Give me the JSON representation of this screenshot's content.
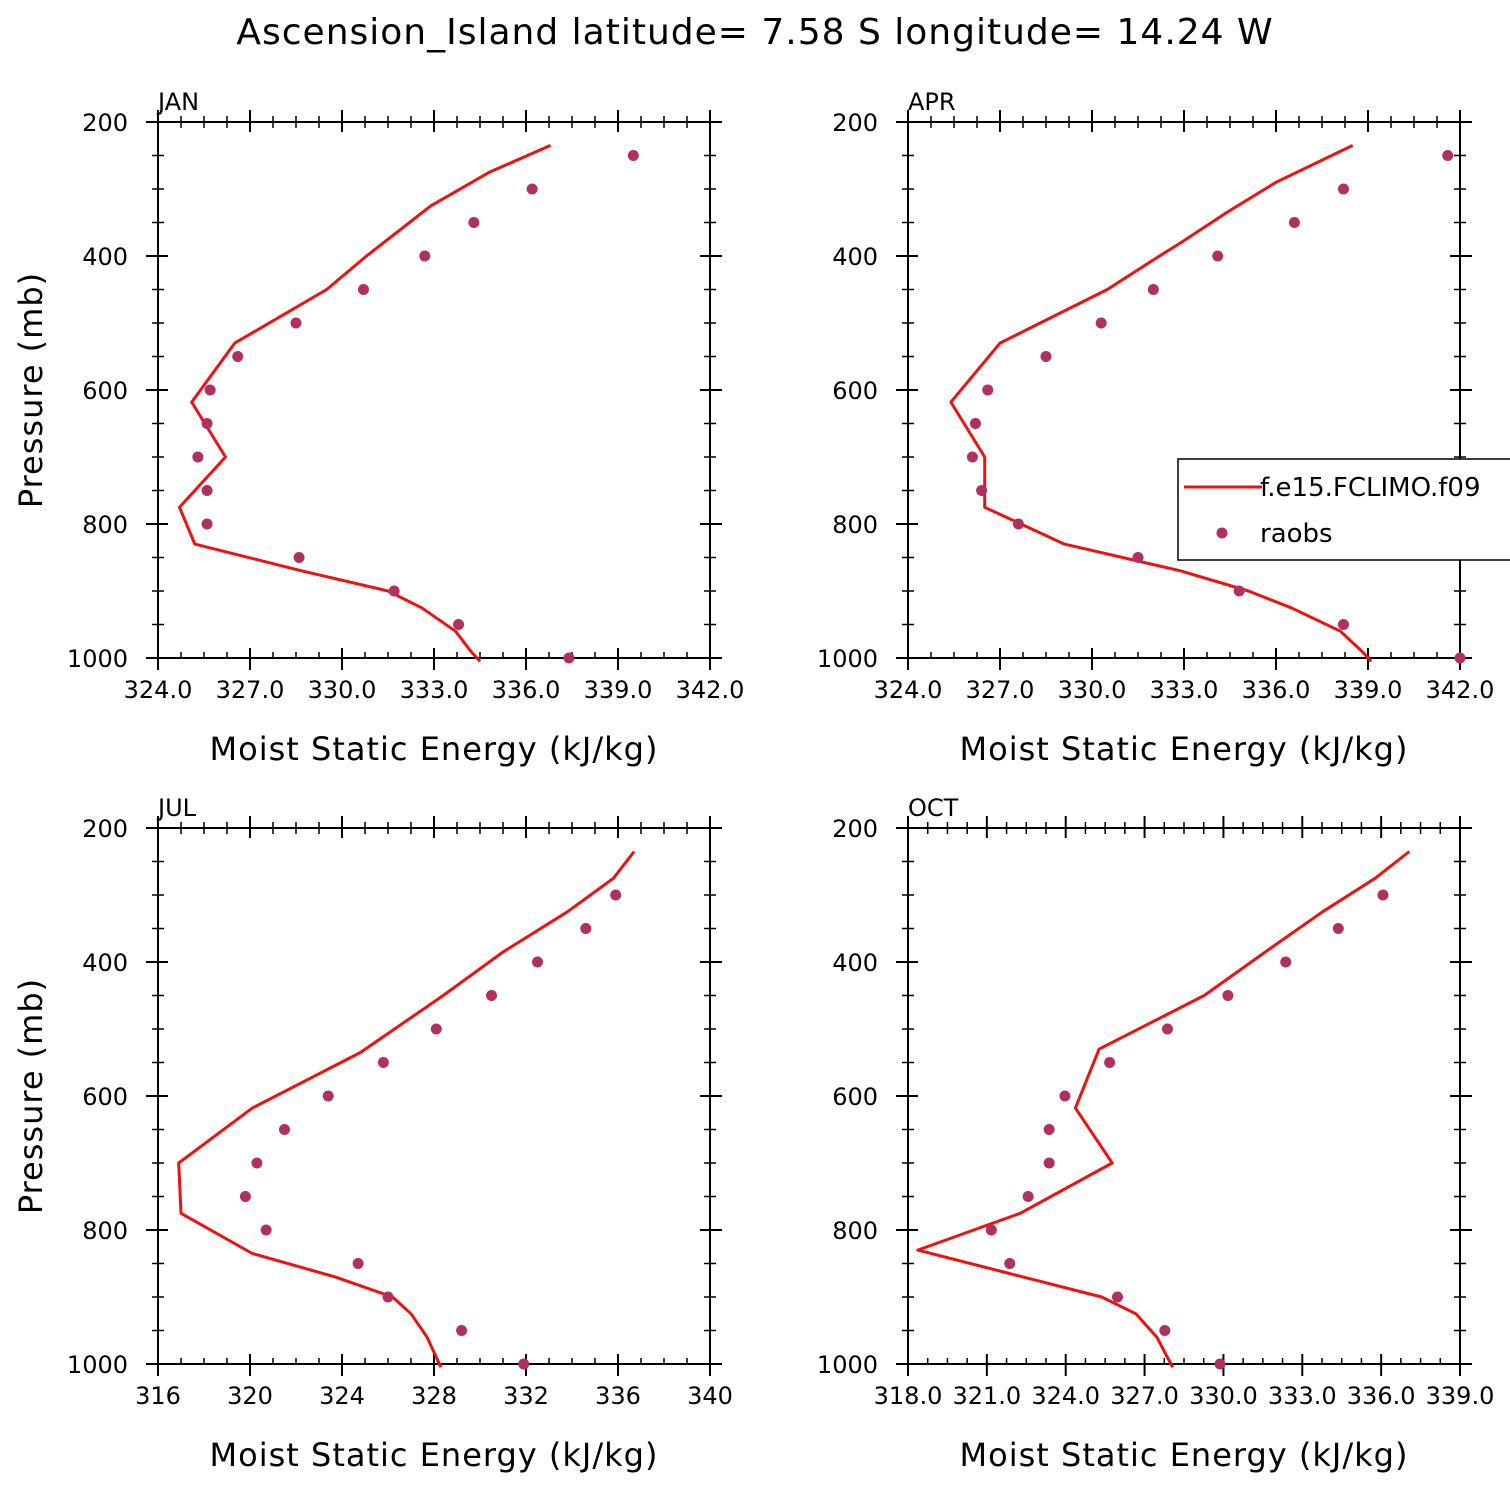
{
  "title": "Ascension_Island  latitude= 7.58 S longitude= 14.24 W",
  "colors": {
    "model": "#ee1111",
    "obs": "#b03060"
  },
  "legend": {
    "model_label": "f.e15.FCLIMO.f09",
    "obs_label": "raobs"
  },
  "chart_data": [
    {
      "type": "line+scatter",
      "panel": "JAN",
      "xlabel": "Moist Static Energy (kJ/kg)",
      "ylabel": "Pressure (mb)",
      "xlim": [
        324,
        342
      ],
      "ylim": [
        1000,
        200
      ],
      "xticks": [
        324,
        327,
        330,
        333,
        336,
        339,
        342
      ],
      "xtick_labels": [
        "324.0",
        "327.0",
        "330.0",
        "333.0",
        "336.0",
        "339.0",
        "342.0"
      ],
      "yticks": [
        200,
        400,
        600,
        800,
        1000
      ],
      "ytick_labels": [
        "200",
        "400",
        "600",
        "800",
        "1000"
      ],
      "series": [
        {
          "name": "f.e15.FCLIMO.f09",
          "kind": "line",
          "p": [
            1005,
            990,
            960,
            925,
            900,
            870,
            830,
            775,
            700,
            618,
            530,
            450,
            400,
            325,
            275,
            235
          ],
          "x": [
            334.5,
            334.2,
            333.7,
            332.6,
            331.5,
            328.7,
            325.2,
            324.7,
            326.2,
            325.1,
            326.5,
            329.5,
            330.8,
            332.9,
            334.8,
            336.8
          ]
        },
        {
          "name": "raobs",
          "kind": "scatter",
          "p": [
            1000,
            950,
            900,
            850,
            800,
            750,
            700,
            650,
            600,
            550,
            500,
            450,
            400,
            350,
            300,
            250
          ],
          "x": [
            337.4,
            333.8,
            331.7,
            328.6,
            325.6,
            325.6,
            325.3,
            325.6,
            325.7,
            326.6,
            328.5,
            330.7,
            332.7,
            334.3,
            336.2,
            339.5
          ]
        }
      ]
    },
    {
      "type": "line+scatter",
      "panel": "APR",
      "xlabel": "Moist Static Energy (kJ/kg)",
      "ylabel": "Pressure (mb)",
      "xlim": [
        324,
        342
      ],
      "ylim": [
        1000,
        200
      ],
      "xticks": [
        324,
        327,
        330,
        333,
        336,
        339,
        342
      ],
      "xtick_labels": [
        "324.0",
        "327.0",
        "330.0",
        "333.0",
        "336.0",
        "339.0",
        "342.0"
      ],
      "yticks": [
        200,
        400,
        600,
        800,
        1000
      ],
      "ytick_labels": [
        "200",
        "400",
        "600",
        "800",
        "1000"
      ],
      "series": [
        {
          "name": "f.e15.FCLIMO.f09",
          "kind": "line",
          "p": [
            1005,
            990,
            960,
            925,
            900,
            870,
            830,
            775,
            700,
            618,
            530,
            450,
            400,
            380,
            335,
            290,
            235
          ],
          "x": [
            339.1,
            338.8,
            338.1,
            336.5,
            335.1,
            332.9,
            329.1,
            326.5,
            326.5,
            325.4,
            327.0,
            330.5,
            332.2,
            332.9,
            334.4,
            336.0,
            338.5
          ]
        },
        {
          "name": "raobs",
          "kind": "scatter",
          "p": [
            1000,
            950,
            900,
            850,
            800,
            750,
            700,
            650,
            600,
            550,
            500,
            450,
            400,
            350,
            300,
            250
          ],
          "x": [
            342.0,
            338.2,
            334.8,
            331.5,
            327.6,
            326.4,
            326.1,
            326.2,
            326.6,
            328.5,
            330.3,
            332.0,
            334.1,
            336.6,
            338.2,
            341.6
          ]
        }
      ]
    },
    {
      "type": "line+scatter",
      "panel": "JUL",
      "xlabel": "Moist Static Energy (kJ/kg)",
      "ylabel": "Pressure (mb)",
      "xlim": [
        316,
        340
      ],
      "ylim": [
        1000,
        200
      ],
      "xticks": [
        316,
        320,
        324,
        328,
        332,
        336,
        340
      ],
      "xtick_labels": [
        "316",
        "320",
        "324",
        "328",
        "332",
        "336",
        "340"
      ],
      "yticks": [
        200,
        400,
        600,
        800,
        1000
      ],
      "ytick_labels": [
        "200",
        "400",
        "600",
        "800",
        "1000"
      ],
      "series": [
        {
          "name": "f.e15.FCLIMO.f09",
          "kind": "line",
          "p": [
            1005,
            990,
            960,
            925,
            900,
            870,
            835,
            775,
            700,
            618,
            535,
            450,
            385,
            325,
            275,
            235
          ],
          "x": [
            328.3,
            328.1,
            327.7,
            327.0,
            326.2,
            323.7,
            320.1,
            317.0,
            316.9,
            320.1,
            324.8,
            328.4,
            331.0,
            333.8,
            335.8,
            336.7
          ]
        },
        {
          "name": "raobs",
          "kind": "scatter",
          "p": [
            1000,
            950,
            900,
            850,
            800,
            750,
            700,
            650,
            600,
            550,
            500,
            450,
            400,
            350,
            300
          ],
          "x": [
            331.9,
            329.2,
            326.0,
            324.7,
            320.7,
            319.8,
            320.3,
            321.5,
            323.4,
            325.8,
            328.1,
            330.5,
            332.5,
            334.6,
            335.9
          ]
        }
      ]
    },
    {
      "type": "line+scatter",
      "panel": "OCT",
      "xlabel": "Moist Static Energy (kJ/kg)",
      "ylabel": "Pressure (mb)",
      "xlim": [
        318.03,
        339.03
      ],
      "ylim": [
        1000,
        200
      ],
      "xticks": [
        318.03,
        321.03,
        324.03,
        327.03,
        330.03,
        333.03,
        336.03,
        339.03
      ],
      "xtick_labels": [
        "318.0",
        "321.0",
        "324.0",
        "327.0",
        "330.0",
        "333.0",
        "336.0",
        "339.0"
      ],
      "yticks": [
        200,
        400,
        600,
        800,
        1000
      ],
      "ytick_labels": [
        "200",
        "400",
        "600",
        "800",
        "1000"
      ],
      "series": [
        {
          "name": "f.e15.FCLIMO.f09",
          "kind": "line",
          "p": [
            1005,
            990,
            960,
            925,
            900,
            870,
            830,
            775,
            700,
            618,
            530,
            450,
            380,
            325,
            275,
            235
          ],
          "x": [
            328.1,
            327.9,
            327.5,
            326.7,
            325.4,
            322.4,
            318.4,
            322.3,
            325.8,
            324.4,
            325.3,
            329.3,
            331.8,
            333.8,
            335.8,
            337.1
          ]
        },
        {
          "name": "raobs",
          "kind": "scatter",
          "p": [
            1000,
            950,
            900,
            850,
            800,
            750,
            700,
            650,
            600,
            550,
            500,
            450,
            400,
            350,
            300
          ],
          "x": [
            329.9,
            327.8,
            326.0,
            321.9,
            321.2,
            322.6,
            323.4,
            323.4,
            324.0,
            325.7,
            327.9,
            330.2,
            332.4,
            334.4,
            336.1
          ]
        }
      ]
    }
  ]
}
